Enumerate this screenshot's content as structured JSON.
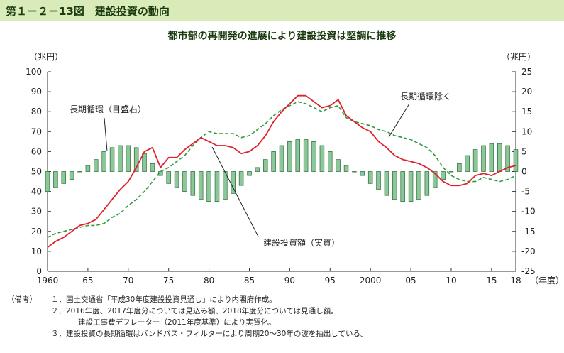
{
  "figure": {
    "title": "第１－２－13図　建設投資の動向"
  },
  "chart_data": {
    "type": "line",
    "title": "都市部の再開発の進展により建設投資は堅調に推移",
    "left_unit": "（兆円）",
    "right_unit": "（兆円）",
    "x_unit": "（年度）",
    "xlim": [
      1960,
      2018
    ],
    "ylim_left": [
      0,
      100
    ],
    "ylim_right": [
      -25,
      25
    ],
    "x_ticks": [
      {
        "value": 1960,
        "label": "1960"
      },
      {
        "value": 1965,
        "label": "65"
      },
      {
        "value": 1970,
        "label": "70"
      },
      {
        "value": 1975,
        "label": "75"
      },
      {
        "value": 1980,
        "label": "80"
      },
      {
        "value": 1985,
        "label": "85"
      },
      {
        "value": 1990,
        "label": "90"
      },
      {
        "value": 1995,
        "label": "95"
      },
      {
        "value": 2000,
        "label": "2000"
      },
      {
        "value": 2005,
        "label": "05"
      },
      {
        "value": 2010,
        "label": "10"
      },
      {
        "value": 2015,
        "label": "15"
      },
      {
        "value": 2018,
        "label": "18"
      }
    ],
    "left_ticks": [
      "0",
      "10",
      "20",
      "30",
      "40",
      "50",
      "60",
      "70",
      "80",
      "90",
      "100"
    ],
    "right_ticks": [
      "-25",
      "-20",
      "-15",
      "-10",
      "-5",
      "0",
      "5",
      "10",
      "15",
      "20",
      "25"
    ],
    "x": [
      1960,
      1961,
      1962,
      1963,
      1964,
      1965,
      1966,
      1967,
      1968,
      1969,
      1970,
      1971,
      1972,
      1973,
      1974,
      1975,
      1976,
      1977,
      1978,
      1979,
      1980,
      1981,
      1982,
      1983,
      1984,
      1985,
      1986,
      1987,
      1988,
      1989,
      1990,
      1991,
      1992,
      1993,
      1994,
      1995,
      1996,
      1997,
      1998,
      1999,
      2000,
      2001,
      2002,
      2003,
      2004,
      2005,
      2006,
      2007,
      2008,
      2009,
      2010,
      2011,
      2012,
      2013,
      2014,
      2015,
      2016,
      2017,
      2018
    ],
    "series": [
      {
        "name": "建設投資額（実質）",
        "axis": "left",
        "style": "line",
        "color": "#e0202a",
        "values": [
          12,
          15,
          17,
          20,
          23,
          24,
          26,
          31,
          36,
          41,
          45,
          52,
          60,
          62,
          52,
          57,
          57,
          61,
          64,
          67,
          65,
          63,
          63,
          62,
          59,
          60,
          63,
          68,
          75,
          80,
          84,
          88,
          88,
          85,
          82,
          83,
          86,
          78,
          75,
          72,
          70,
          65,
          62,
          58,
          56,
          55,
          54,
          52,
          49,
          45,
          43,
          43,
          44,
          48,
          49,
          48,
          50,
          52,
          53
        ]
      },
      {
        "name": "長期循環除く",
        "axis": "left",
        "style": "dashed",
        "color": "#2e9a3a",
        "values": [
          17,
          19,
          20,
          21,
          22,
          23,
          23,
          24,
          27,
          29,
          33,
          36,
          40,
          45,
          50,
          52,
          55,
          58,
          63,
          67,
          70,
          69,
          69,
          69,
          67,
          68,
          71,
          74,
          78,
          81,
          83,
          85,
          84,
          82,
          80,
          82,
          83,
          77,
          75,
          74,
          73,
          71,
          70,
          68,
          67,
          66,
          64,
          62,
          58,
          52,
          48,
          46,
          45,
          45,
          47,
          46,
          45,
          46,
          48
        ]
      },
      {
        "name": "長期循環（目盛右）",
        "axis": "right",
        "style": "bar",
        "color": "#8cc79a",
        "values": [
          -5,
          -4,
          -3,
          -2,
          0,
          1.5,
          3,
          5,
          6,
          6.5,
          6.5,
          6,
          4.5,
          2,
          -1,
          -3,
          -4,
          -5,
          -6,
          -7,
          -7.5,
          -7.5,
          -7,
          -5.5,
          -3.5,
          -1,
          1,
          3,
          5,
          6.5,
          7.5,
          8,
          8,
          7.5,
          6.5,
          5,
          3,
          1.5,
          0,
          -1,
          -3,
          -4.5,
          -6,
          -7,
          -7.5,
          -7.5,
          -7,
          -6,
          -4,
          -2,
          0,
          2,
          4,
          5.5,
          6.5,
          7,
          7,
          6.5,
          5.5
        ]
      }
    ],
    "annotations": [
      {
        "text": "長期循環（目盛右）",
        "target_series": 2
      },
      {
        "text": "長期循環除く",
        "target_series": 1
      },
      {
        "text": "建設投資額（実質）",
        "target_series": 0
      }
    ],
    "grid": false
  },
  "notes": {
    "head": "（備考）",
    "lines": [
      "１．国土交通省「平成30年度建設投資見通し」により内閣府作成。",
      "２．2016年度、2017年度分については見込み額、2018年度分については見通し額。",
      "建設工事費デフレーター（2011年度基準）により実質化。",
      "３．建設投資の長期循環はバンドパス・フィルターにより周期20～30年の波を抽出している。"
    ]
  }
}
